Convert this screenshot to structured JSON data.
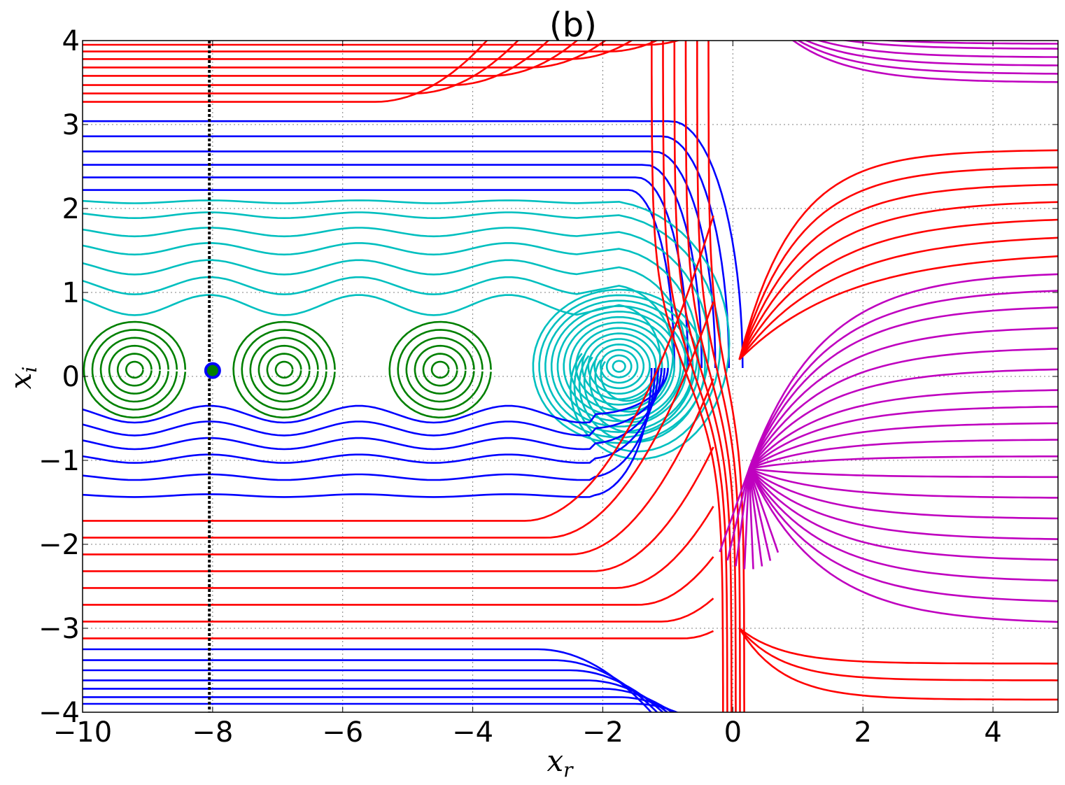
{
  "chart_data": {
    "type": "line",
    "title": "(b)",
    "xlabel": "x",
    "xlabel_sub": "r",
    "ylabel": "x",
    "ylabel_sub": "i",
    "xlim": [
      -10,
      5
    ],
    "ylim": [
      -4,
      4
    ],
    "x_ticks": [
      -10,
      -8,
      -6,
      -4,
      -2,
      0,
      2,
      4
    ],
    "x_tick_labels": [
      "−10",
      "−8",
      "−6",
      "−4",
      "−2",
      "0",
      "2",
      "4"
    ],
    "y_ticks": [
      -4,
      -3,
      -2,
      -1,
      0,
      1,
      2,
      3,
      4
    ],
    "y_tick_labels": [
      "−4",
      "−3",
      "−2",
      "−1",
      "0",
      "1",
      "2",
      "3",
      "4"
    ],
    "grid": true,
    "grid_style": "dotted",
    "colors": {
      "red": "#ff0000",
      "blue": "#0000ff",
      "cyan": "#00bfbf",
      "green": "#008000",
      "magenta": "#bf00bf",
      "marker_edge": "#0000ff",
      "marker_face": "#008000",
      "dashed_line": "#000000"
    },
    "vertical_dashed_line_x": -8.05,
    "marker": {
      "x": -8.0,
      "y": 0.07
    },
    "families": {
      "red_left_upper_y": [
        3.27,
        3.37,
        3.47,
        3.58,
        3.68,
        3.78,
        3.87,
        3.95
      ],
      "red_left_lower_y": [
        -1.72,
        -1.92,
        -2.12,
        -2.32,
        -2.52,
        -2.72,
        -2.92,
        -3.12
      ],
      "blue_upper_y": [
        2.22,
        2.37,
        2.52,
        2.68,
        2.86,
        3.04
      ],
      "blue_lower_y": [
        -0.45,
        -0.62,
        -0.8,
        -0.98,
        -1.2,
        -1.42
      ],
      "blue_bottom_y": [
        -3.25,
        -3.38,
        -3.5,
        -3.62,
        -3.72,
        -3.82,
        -3.9
      ],
      "cyan_y": [
        0.85,
        1.08,
        1.3,
        1.52,
        1.72,
        1.92,
        2.08
      ],
      "green_centers_x": [
        -9.2,
        -6.9,
        -4.5
      ],
      "green_center_y": 0.08,
      "cyan_spiral_center": [
        -1.75,
        0.12
      ],
      "magenta_node": [
        0.25,
        -1.1
      ],
      "magenta_right_y": [
        3.5,
        3.6,
        3.7,
        3.8,
        3.9,
        3.96,
        1.25,
        1.05,
        0.85,
        0.6,
        0.35,
        0.1,
        -0.15,
        -0.35,
        -0.55,
        -0.75,
        -0.95,
        -1.2,
        -1.45,
        -1.7,
        -1.95,
        -2.2,
        -2.45,
        -2.7,
        -2.95
      ],
      "red_right_y": [
        2.7,
        2.5,
        2.3,
        2.1,
        1.9,
        1.7,
        1.5,
        -3.42,
        -3.62,
        -3.85
      ]
    }
  }
}
